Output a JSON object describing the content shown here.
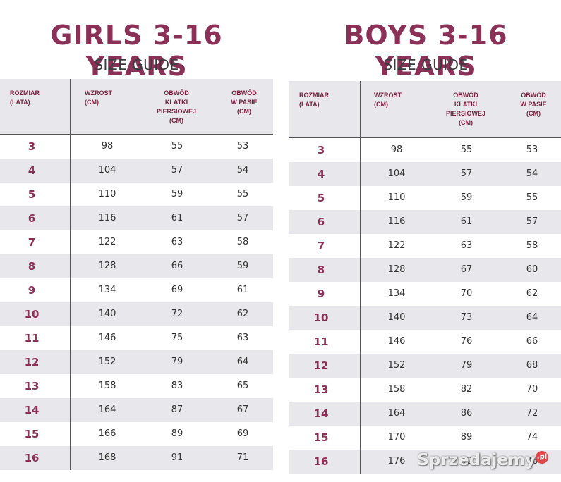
{
  "headers": [
    "ROZMIAR\n(LATA)",
    "WZROST\n(CM)",
    "OBWÓD\nKLATKI\nPIERSIOWEJ\n(CM)",
    "OBWÓD\nW PASIE\n(CM)"
  ],
  "girls": {
    "title": "GIRLS 3-16 YEARS",
    "subtitle": "SIZE GUIDE",
    "rows": [
      [
        "3",
        "98",
        "55",
        "53"
      ],
      [
        "4",
        "104",
        "57",
        "54"
      ],
      [
        "5",
        "110",
        "59",
        "55"
      ],
      [
        "6",
        "116",
        "61",
        "57"
      ],
      [
        "7",
        "122",
        "63",
        "58"
      ],
      [
        "8",
        "128",
        "66",
        "59"
      ],
      [
        "9",
        "134",
        "69",
        "61"
      ],
      [
        "10",
        "140",
        "72",
        "62"
      ],
      [
        "11",
        "146",
        "75",
        "63"
      ],
      [
        "12",
        "152",
        "79",
        "64"
      ],
      [
        "13",
        "158",
        "83",
        "65"
      ],
      [
        "14",
        "164",
        "87",
        "67"
      ],
      [
        "15",
        "166",
        "89",
        "69"
      ],
      [
        "16",
        "168",
        "91",
        "71"
      ]
    ]
  },
  "boys": {
    "title": "BOYS 3-16 YEARS",
    "subtitle": "SIZE GUIDE",
    "rows": [
      [
        "3",
        "98",
        "55",
        "53"
      ],
      [
        "4",
        "104",
        "57",
        "54"
      ],
      [
        "5",
        "110",
        "59",
        "55"
      ],
      [
        "6",
        "116",
        "61",
        "57"
      ],
      [
        "7",
        "122",
        "63",
        "58"
      ],
      [
        "8",
        "128",
        "67",
        "60"
      ],
      [
        "9",
        "134",
        "70",
        "62"
      ],
      [
        "10",
        "140",
        "73",
        "64"
      ],
      [
        "11",
        "146",
        "76",
        "66"
      ],
      [
        "12",
        "152",
        "79",
        "68"
      ],
      [
        "13",
        "158",
        "82",
        "70"
      ],
      [
        "14",
        "164",
        "86",
        "72"
      ],
      [
        "15",
        "170",
        "89",
        "74"
      ],
      [
        "16",
        "176",
        "92",
        "76"
      ]
    ]
  },
  "watermark": {
    "text": "Sprzedajemy",
    "suffix": ".pl"
  }
}
